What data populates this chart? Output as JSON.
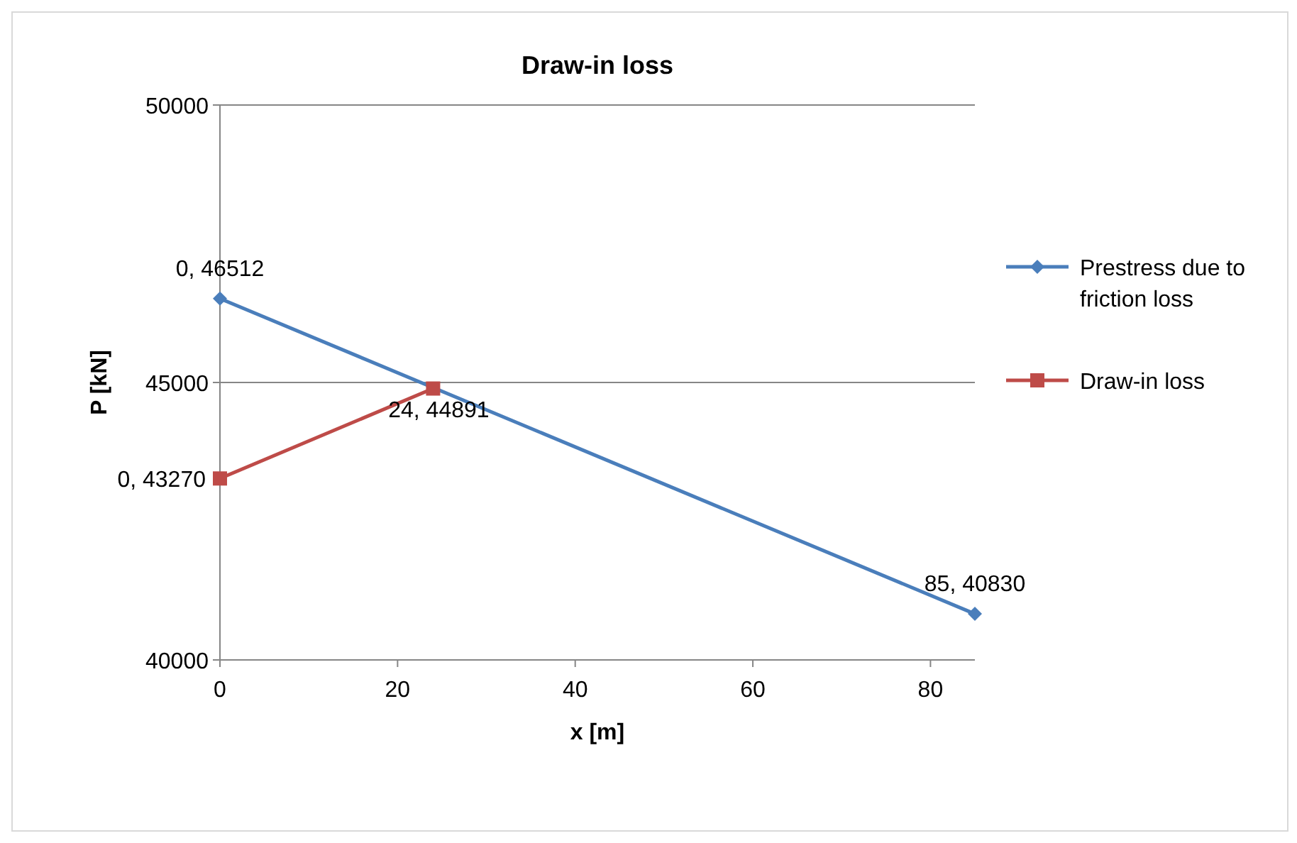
{
  "chart_data": {
    "type": "line",
    "title": "Draw-in loss",
    "xlabel": "x [m]",
    "ylabel": "P [kN]",
    "xlim": [
      0,
      85
    ],
    "xticks": [
      0,
      20,
      40,
      60,
      80
    ],
    "ylim": [
      40000,
      50000
    ],
    "yticks": [
      40000,
      45000,
      50000
    ],
    "grid": "y",
    "legend": "right",
    "series": [
      {
        "name": "Prestress due to friction loss",
        "color": "#4a7ebb",
        "marker": "diamond",
        "x": [
          0,
          85
        ],
        "values": [
          46512,
          40830
        ],
        "value_labels": [
          "0, 46512",
          "85, 40830"
        ]
      },
      {
        "name": "Draw-in loss",
        "color": "#be4b48",
        "marker": "square",
        "x": [
          0,
          24
        ],
        "values": [
          43270,
          44891
        ],
        "value_labels": [
          "0, 43270",
          "24, 44891"
        ]
      }
    ]
  }
}
